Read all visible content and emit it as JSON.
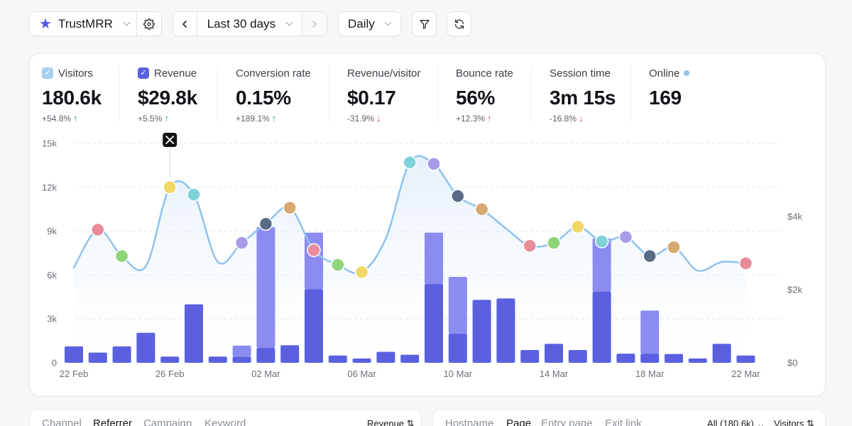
{
  "toolbar": {
    "site_name": "TrustMRR",
    "period_label": "Last 30 days",
    "interval_label": "Daily",
    "icons": {
      "site": "star-icon",
      "settings": "gear-icon",
      "prev": "chevron-left-icon",
      "next": "chevron-right-icon",
      "filter": "filter-icon",
      "refresh": "refresh-icon"
    },
    "accent_color": "#4f56e8"
  },
  "metrics": [
    {
      "label": "Visitors",
      "value": "180.6k",
      "delta": "+54.8%",
      "trend": "up",
      "checkbox": "light"
    },
    {
      "label": "Revenue",
      "value": "$29.8k",
      "delta": "+5.5%",
      "trend": "up",
      "checkbox": "dark"
    },
    {
      "label": "Conversion rate",
      "value": "0.15%",
      "delta": "+189.1%",
      "trend": "up"
    },
    {
      "label": "Revenue/visitor",
      "value": "$0.17",
      "delta": "-31.9%",
      "trend": "down"
    },
    {
      "label": "Bounce rate",
      "value": "56%",
      "delta": "+12.3%",
      "trend": "up"
    },
    {
      "label": "Session time",
      "value": "3m 15s",
      "delta": "-16.8%",
      "trend": "down"
    },
    {
      "label": "Online",
      "value": "169"
    }
  ],
  "chart_data": {
    "type": "bar+line",
    "x_tick_labels": [
      "22 Feb",
      "26 Feb",
      "02 Mar",
      "06 Mar",
      "10 Mar",
      "14 Mar",
      "18 Mar",
      "22 Mar"
    ],
    "y_left_ticks": [
      "15k",
      "12k",
      "9k",
      "6k",
      "3k",
      "0"
    ],
    "y_right_ticks": [
      "$4k",
      "$2k",
      "$0"
    ],
    "ylim_left": [
      0,
      15000
    ],
    "ylim_right": [
      0,
      6000
    ],
    "visitors_series_color": "#8ec3ee",
    "revenue_series_colors": {
      "base": "#5b5fe0",
      "extra": "#8a8cf0"
    },
    "visitors": [
      6500,
      9100,
      7300,
      6600,
      12000,
      11500,
      6900,
      8200,
      9500,
      10600,
      7700,
      6700,
      6200,
      8500,
      13700,
      13600,
      11400,
      10500,
      9200,
      8000,
      8200,
      9300,
      8300,
      8600,
      7300,
      7900,
      6300,
      6900,
      6800
    ],
    "revenue_base": [
      450,
      280,
      450,
      820,
      170,
      1600,
      170,
      170,
      410,
      480,
      2010,
      200,
      120,
      300,
      220,
      2160,
      800,
      1720,
      1760,
      350,
      520,
      350,
      1950,
      250,
      250,
      240,
      120,
      520,
      200
    ],
    "revenue_extra": [
      0,
      0,
      0,
      0,
      0,
      0,
      0,
      300,
      3300,
      0,
      1550,
      0,
      0,
      0,
      0,
      1400,
      1550,
      0,
      0,
      0,
      0,
      0,
      1450,
      0,
      1180,
      0,
      0,
      0,
      0
    ],
    "annotation": "x-logo-icon",
    "grid": true
  },
  "bottom_left": {
    "tabs": [
      "Channel",
      "Referrer",
      "Campaign",
      "Keyword"
    ],
    "active_tab": "Referrer",
    "sort_label": "Revenue"
  },
  "bottom_right": {
    "tabs": [
      "Hostname",
      "Page",
      "Entry page",
      "Exit link"
    ],
    "active_tab": "Page",
    "filter_label": "All (180.6k)",
    "sort_label": "Visitors"
  }
}
